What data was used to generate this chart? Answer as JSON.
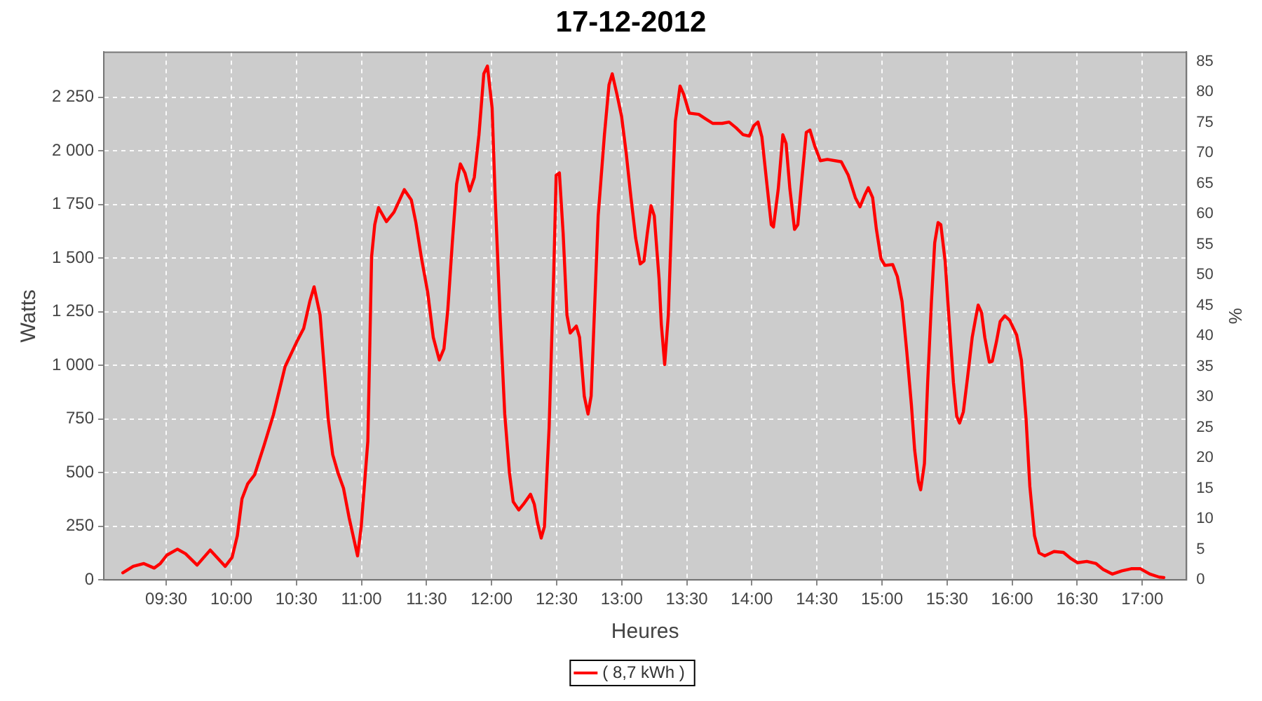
{
  "chart_data": {
    "type": "line",
    "title": "17-12-2012",
    "xlabel": "Heures",
    "ylabel": "Watts",
    "y2label": "%",
    "xlim": [
      9.02,
      17.34
    ],
    "xticks": [
      {
        "value": 9.5,
        "label": "09:30"
      },
      {
        "value": 10,
        "label": "10:00"
      },
      {
        "value": 10.5,
        "label": "10:30"
      },
      {
        "value": 11,
        "label": "11:00"
      },
      {
        "value": 11.5,
        "label": "11:30"
      },
      {
        "value": 12,
        "label": "12:00"
      },
      {
        "value": 12.5,
        "label": "12:30"
      },
      {
        "value": 13,
        "label": "13:00"
      },
      {
        "value": 13.5,
        "label": "13:30"
      },
      {
        "value": 14,
        "label": "14:00"
      },
      {
        "value": 14.5,
        "label": "14:30"
      },
      {
        "value": 15,
        "label": "15:00"
      },
      {
        "value": 15.5,
        "label": "15:30"
      },
      {
        "value": 16,
        "label": "16:00"
      },
      {
        "value": 16.5,
        "label": "16:30"
      },
      {
        "value": 17,
        "label": "17:00"
      }
    ],
    "ylim": [
      0,
      2460
    ],
    "yticks": [
      0,
      250,
      500,
      750,
      {
        "value": 1000,
        "label": "1 000"
      },
      {
        "value": 1250,
        "label": "1 250"
      },
      {
        "value": 1500,
        "label": "1 500"
      },
      {
        "value": 1750,
        "label": "1 750"
      },
      {
        "value": 2000,
        "label": "2 000"
      },
      {
        "value": 2250,
        "label": "2 250"
      }
    ],
    "y2lim": [
      0,
      86.5
    ],
    "y2ticks": [
      0,
      5,
      10,
      15,
      20,
      25,
      30,
      35,
      40,
      45,
      50,
      55,
      60,
      65,
      70,
      75,
      80,
      85
    ],
    "grid": true,
    "legend": "bottom",
    "marker": "none",
    "line_style": "solid",
    "series": [
      {
        "name": "( 8,7 kWh )",
        "color": "#ff0000",
        "x": [
          9.166,
          9.246,
          9.328,
          9.407,
          9.454,
          9.504,
          9.586,
          9.648,
          9.737,
          9.838,
          9.953,
          10.006,
          10.046,
          10.082,
          10.125,
          10.179,
          10.251,
          10.323,
          10.413,
          10.502,
          10.556,
          10.603,
          10.636,
          10.682,
          10.744,
          10.779,
          10.819,
          10.862,
          10.905,
          10.97,
          10.998,
          11.049,
          11.078,
          11.102,
          11.131,
          11.192,
          11.25,
          11.329,
          11.383,
          11.418,
          11.461,
          11.509,
          11.552,
          11.598,
          11.634,
          11.663,
          11.698,
          11.731,
          11.76,
          11.795,
          11.832,
          11.867,
          11.903,
          11.94,
          11.968,
          12.004,
          12.029,
          12.065,
          12.101,
          12.137,
          12.166,
          12.209,
          12.245,
          12.299,
          12.328,
          12.352,
          12.381,
          12.406,
          12.442,
          12.478,
          12.496,
          12.521,
          12.55,
          12.579,
          12.604,
          12.651,
          12.676,
          12.712,
          12.741,
          12.765,
          12.819,
          12.867,
          12.902,
          12.927,
          12.963,
          12.999,
          13.034,
          13.071,
          13.107,
          13.142,
          13.171,
          13.196,
          13.225,
          13.25,
          13.287,
          13.304,
          13.33,
          13.358,
          13.394,
          13.412,
          13.448,
          13.476,
          13.519,
          13.592,
          13.645,
          13.699,
          13.772,
          13.825,
          13.879,
          13.933,
          13.98,
          14.015,
          14.047,
          14.077,
          14.112,
          14.149,
          14.166,
          14.203,
          14.238,
          14.263,
          14.292,
          14.328,
          14.353,
          14.381,
          14.418,
          14.446,
          14.483,
          14.526,
          14.58,
          14.687,
          14.741,
          14.795,
          14.831,
          14.866,
          14.895,
          14.928,
          14.957,
          14.992,
          15.022,
          15.082,
          15.118,
          15.154,
          15.19,
          15.226,
          15.251,
          15.28,
          15.297,
          15.326,
          15.351,
          15.38,
          15.405,
          15.431,
          15.452,
          15.485,
          15.513,
          15.549,
          15.574,
          15.596,
          15.625,
          15.657,
          15.693,
          15.718,
          15.739,
          15.765,
          15.79,
          15.825,
          15.847,
          15.879,
          15.908,
          15.944,
          15.981,
          16.035,
          16.071,
          16.107,
          16.136,
          16.172,
          16.207,
          16.25,
          16.322,
          16.394,
          16.448,
          16.502,
          16.574,
          16.645,
          16.699,
          16.771,
          16.843,
          16.915,
          16.986,
          17.058,
          17.13,
          17.166
        ],
        "values": [
          33,
          63,
          76,
          55,
          76,
          115,
          143,
          122,
          69,
          139,
          63,
          105,
          206,
          378,
          447,
          490,
          626,
          769,
          994,
          1109,
          1172,
          1298,
          1366,
          1235,
          752,
          584,
          500,
          427,
          290,
          112,
          248,
          647,
          1508,
          1656,
          1735,
          1670,
          1714,
          1819,
          1771,
          1666,
          1500,
          1340,
          1130,
          1025,
          1078,
          1256,
          1571,
          1845,
          1939,
          1897,
          1813,
          1876,
          2075,
          2359,
          2395,
          2200,
          1760,
          1235,
          773,
          500,
          364,
          326,
          353,
          399,
          353,
          269,
          195,
          248,
          710,
          1445,
          1886,
          1897,
          1613,
          1235,
          1151,
          1183,
          1130,
          857,
          773,
          857,
          1697,
          2075,
          2307,
          2359,
          2264,
          2160,
          1991,
          1782,
          1593,
          1473,
          1487,
          1613,
          1744,
          1697,
          1403,
          1193,
          1004,
          1235,
          1865,
          2138,
          2302,
          2264,
          2176,
          2170,
          2149,
          2128,
          2128,
          2134,
          2107,
          2075,
          2069,
          2117,
          2134,
          2065,
          1865,
          1656,
          1645,
          1823,
          2075,
          2034,
          1823,
          1634,
          1656,
          1845,
          2086,
          2097,
          2023,
          1954,
          1960,
          1949,
          1886,
          1782,
          1739,
          1792,
          1828,
          1782,
          1634,
          1498,
          1466,
          1470,
          1414,
          1298,
          1067,
          815,
          605,
          458,
          420,
          542,
          920,
          1298,
          1571,
          1666,
          1656,
          1487,
          1235,
          920,
          763,
          731,
          783,
          941,
          1130,
          1214,
          1281,
          1246,
          1130,
          1015,
          1019,
          1109,
          1204,
          1231,
          1210,
          1141,
          1025,
          752,
          437,
          206,
          126,
          112,
          132,
          128,
          101,
          80,
          86,
          76,
          49,
          27,
          42,
          52,
          52,
          27,
          13,
          11
        ]
      }
    ]
  }
}
